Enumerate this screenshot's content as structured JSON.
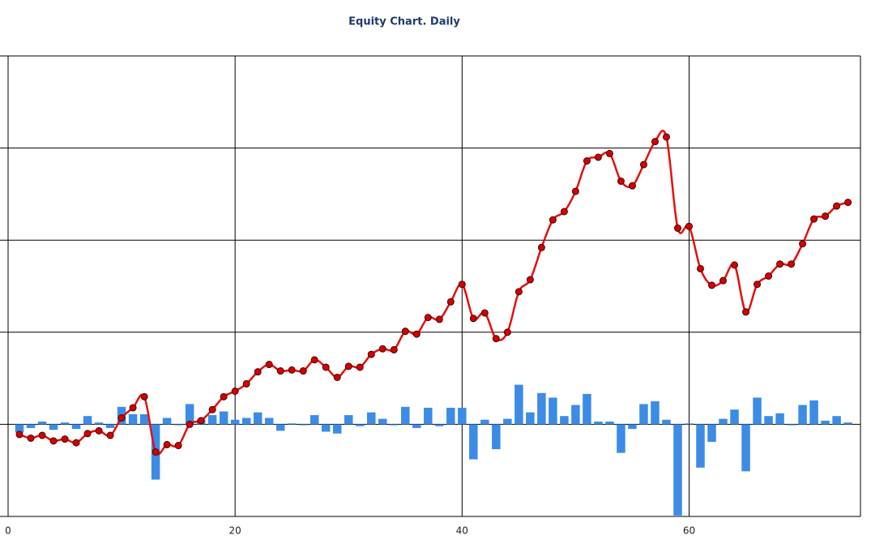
{
  "chart_data": {
    "type": "combo",
    "title": "Equity Chart. Daily",
    "x": [
      1,
      2,
      3,
      4,
      5,
      6,
      7,
      8,
      9,
      10,
      11,
      12,
      13,
      14,
      15,
      16,
      17,
      18,
      19,
      20,
      21,
      22,
      23,
      24,
      25,
      26,
      27,
      28,
      29,
      30,
      31,
      32,
      33,
      34,
      35,
      36,
      37,
      38,
      39,
      40,
      41,
      42,
      43,
      44,
      45,
      46,
      47,
      48,
      49,
      50,
      51,
      52,
      53,
      54,
      55,
      56,
      57,
      58,
      59,
      60,
      61,
      62,
      63,
      64,
      65,
      66,
      67,
      68,
      69,
      70,
      71,
      72,
      73,
      74
    ],
    "series": [
      {
        "type": "bar",
        "color": "#3c8ce6",
        "values": [
          -9,
          -4,
          3,
          -6,
          2,
          -5,
          9,
          2,
          -4,
          19,
          11,
          11,
          -60,
          7,
          -1,
          22,
          5,
          10,
          14,
          5,
          7,
          13,
          7,
          -7,
          1,
          -1,
          10,
          -8,
          -10,
          10,
          -2,
          13,
          6,
          -1,
          19,
          -4,
          18,
          -2,
          18,
          18,
          -38,
          5,
          -27,
          6,
          43,
          13,
          34,
          29,
          9,
          21,
          33,
          3,
          3,
          -31,
          -5,
          22,
          25,
          5,
          -99,
          1,
          -47,
          -19,
          6,
          16,
          -51,
          29,
          9,
          12,
          -1,
          21,
          26,
          4,
          9,
          2
        ]
      },
      {
        "type": "line",
        "color": "#e31010",
        "marker_color": "#d40000",
        "values": [
          -11,
          -15,
          -12,
          -18,
          -16,
          -20,
          -10,
          -7,
          -12,
          7,
          18,
          30,
          -30,
          -22,
          -23,
          0,
          4,
          16,
          30,
          36,
          44,
          57,
          65,
          58,
          59,
          58,
          70,
          62,
          51,
          63,
          62,
          76,
          82,
          81,
          101,
          98,
          116,
          114,
          133,
          152,
          115,
          121,
          93,
          100,
          144,
          157,
          192,
          222,
          231,
          253,
          286,
          290,
          294,
          264,
          259,
          282,
          307,
          312,
          213,
          215,
          169,
          151,
          156,
          173,
          122,
          152,
          161,
          174,
          174,
          196,
          223,
          226,
          237,
          241
        ]
      }
    ],
    "xlim": [
      0,
      75.1
    ],
    "xticks": [
      0,
      20,
      40,
      60
    ],
    "ylim": [
      -100,
      400
    ],
    "yticks": [
      -100,
      0,
      100,
      200,
      300,
      400
    ],
    "ytick_labels": false,
    "grid": true
  }
}
